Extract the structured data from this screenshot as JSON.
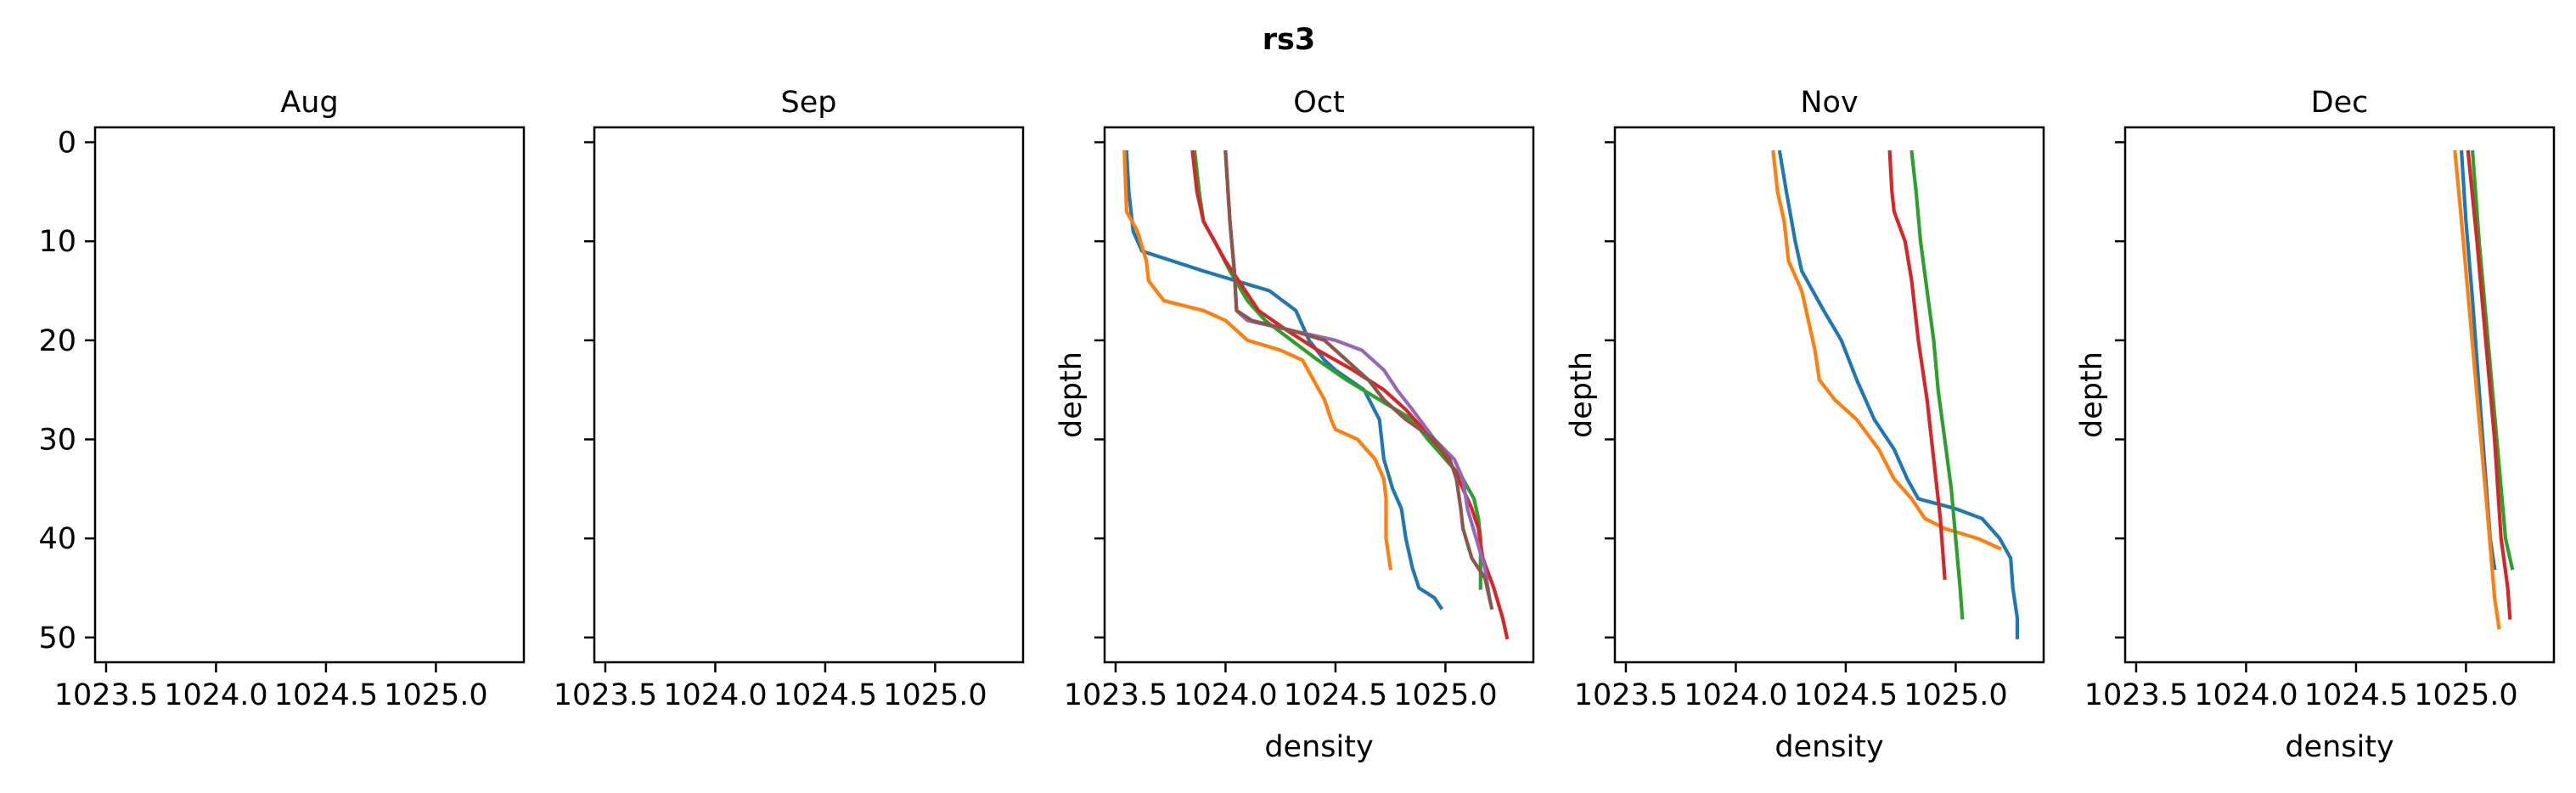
{
  "chart_data": {
    "type": "line",
    "title": "rs3",
    "shared_axes": {
      "xlim": [
        1023.45,
        1025.4
      ],
      "ylim": [
        52.5,
        -1.5
      ],
      "xticks": [
        1023.5,
        1024.0,
        1024.5,
        1025.0
      ],
      "xtick_labels": [
        "1023.5",
        "1024.0",
        "1024.5",
        "1025.0"
      ],
      "yticks": [
        0,
        10,
        20,
        30,
        40,
        50
      ],
      "ytick_labels": [
        "0",
        "10",
        "20",
        "30",
        "40",
        "50"
      ],
      "y_inverted": true,
      "grid": false
    },
    "palette": [
      "#1f77b4",
      "#ff7f0e",
      "#2ca02c",
      "#d62728",
      "#9467bd",
      "#8c564b"
    ],
    "panels": [
      {
        "title": "Aug",
        "xlabel": "",
        "ylabel": "",
        "series": []
      },
      {
        "title": "Sep",
        "xlabel": "",
        "ylabel": "",
        "series": []
      },
      {
        "title": "Oct",
        "xlabel": "density",
        "ylabel": "depth",
        "series": [
          {
            "color": "#1f77b4",
            "points": [
              [
                1023.55,
                1
              ],
              [
                1023.56,
                5
              ],
              [
                1023.58,
                9
              ],
              [
                1023.62,
                11
              ],
              [
                1023.9,
                13
              ],
              [
                1024.2,
                15
              ],
              [
                1024.32,
                17
              ],
              [
                1024.38,
                20
              ],
              [
                1024.45,
                22
              ],
              [
                1024.5,
                23
              ],
              [
                1024.63,
                25
              ],
              [
                1024.7,
                28
              ],
              [
                1024.72,
                32
              ],
              [
                1024.76,
                35
              ],
              [
                1024.8,
                37
              ],
              [
                1024.82,
                40
              ],
              [
                1024.85,
                43
              ],
              [
                1024.88,
                45
              ],
              [
                1024.95,
                46
              ],
              [
                1024.98,
                47
              ]
            ]
          },
          {
            "color": "#ff7f0e",
            "points": [
              [
                1023.54,
                1
              ],
              [
                1023.55,
                7
              ],
              [
                1023.6,
                9
              ],
              [
                1023.64,
                12
              ],
              [
                1023.65,
                14
              ],
              [
                1023.72,
                16
              ],
              [
                1023.9,
                17
              ],
              [
                1024.0,
                18
              ],
              [
                1024.1,
                20
              ],
              [
                1024.25,
                21
              ],
              [
                1024.35,
                22
              ],
              [
                1024.4,
                24
              ],
              [
                1024.45,
                26
              ],
              [
                1024.48,
                28
              ],
              [
                1024.5,
                29
              ],
              [
                1024.6,
                30
              ],
              [
                1024.68,
                32
              ],
              [
                1024.72,
                34
              ],
              [
                1024.73,
                36
              ],
              [
                1024.73,
                40
              ],
              [
                1024.75,
                43
              ]
            ]
          },
          {
            "color": "#2ca02c",
            "points": [
              [
                1023.86,
                1
              ],
              [
                1023.88,
                5
              ],
              [
                1023.9,
                8
              ],
              [
                1023.95,
                10
              ],
              [
                1024.02,
                13
              ],
              [
                1024.1,
                16
              ],
              [
                1024.18,
                18
              ],
              [
                1024.3,
                20
              ],
              [
                1024.42,
                22
              ],
              [
                1024.55,
                24
              ],
              [
                1024.7,
                26
              ],
              [
                1024.85,
                28
              ],
              [
                1024.92,
                30
              ],
              [
                1025.0,
                32
              ],
              [
                1025.08,
                34
              ],
              [
                1025.13,
                36
              ],
              [
                1025.15,
                38
              ],
              [
                1025.16,
                40
              ],
              [
                1025.16,
                45
              ]
            ]
          },
          {
            "color": "#d62728",
            "points": [
              [
                1023.85,
                1
              ],
              [
                1023.87,
                5
              ],
              [
                1023.9,
                8
              ],
              [
                1023.95,
                10
              ],
              [
                1024.0,
                12
              ],
              [
                1024.06,
                14
              ],
              [
                1024.15,
                17
              ],
              [
                1024.28,
                19
              ],
              [
                1024.42,
                21
              ],
              [
                1024.58,
                23
              ],
              [
                1024.72,
                25
              ],
              [
                1024.82,
                27
              ],
              [
                1024.9,
                29
              ],
              [
                1024.98,
                31
              ],
              [
                1025.04,
                33
              ],
              [
                1025.08,
                35
              ],
              [
                1025.12,
                37
              ],
              [
                1025.15,
                39
              ],
              [
                1025.17,
                42
              ],
              [
                1025.22,
                45
              ],
              [
                1025.26,
                48
              ],
              [
                1025.28,
                50
              ]
            ]
          },
          {
            "color": "#9467bd",
            "points": [
              [
                1024.0,
                1
              ],
              [
                1024.02,
                8
              ],
              [
                1024.04,
                13
              ],
              [
                1024.05,
                17
              ],
              [
                1024.1,
                18
              ],
              [
                1024.3,
                19
              ],
              [
                1024.5,
                20
              ],
              [
                1024.62,
                21
              ],
              [
                1024.72,
                23
              ],
              [
                1024.78,
                25
              ],
              [
                1024.85,
                27
              ],
              [
                1024.95,
                30
              ],
              [
                1025.04,
                32
              ],
              [
                1025.08,
                34
              ],
              [
                1025.1,
                37
              ],
              [
                1025.14,
                40
              ],
              [
                1025.18,
                43
              ],
              [
                1025.2,
                46
              ]
            ]
          },
          {
            "color": "#8c564b",
            "points": [
              [
                1024.0,
                1
              ],
              [
                1024.02,
                8
              ],
              [
                1024.04,
                13
              ],
              [
                1024.05,
                17
              ],
              [
                1024.12,
                18
              ],
              [
                1024.3,
                19
              ],
              [
                1024.45,
                20
              ],
              [
                1024.55,
                22
              ],
              [
                1024.65,
                24
              ],
              [
                1024.72,
                26
              ],
              [
                1024.82,
                28
              ],
              [
                1024.95,
                30
              ],
              [
                1025.02,
                32
              ],
              [
                1025.05,
                34
              ],
              [
                1025.07,
                37
              ],
              [
                1025.08,
                39
              ],
              [
                1025.12,
                42
              ],
              [
                1025.18,
                44
              ],
              [
                1025.21,
                47
              ]
            ]
          }
        ]
      },
      {
        "title": "Nov",
        "xlabel": "density",
        "ylabel": "depth",
        "series": [
          {
            "color": "#1f77b4",
            "points": [
              [
                1024.2,
                1
              ],
              [
                1024.23,
                5
              ],
              [
                1024.27,
                10
              ],
              [
                1024.3,
                13
              ],
              [
                1024.4,
                17
              ],
              [
                1024.48,
                20
              ],
              [
                1024.55,
                24
              ],
              [
                1024.63,
                28
              ],
              [
                1024.72,
                31
              ],
              [
                1024.78,
                34
              ],
              [
                1024.83,
                36
              ],
              [
                1025.0,
                37
              ],
              [
                1025.12,
                38
              ],
              [
                1025.2,
                40
              ],
              [
                1025.25,
                42
              ],
              [
                1025.26,
                45
              ],
              [
                1025.28,
                48
              ],
              [
                1025.28,
                50
              ]
            ]
          },
          {
            "color": "#ff7f0e",
            "points": [
              [
                1024.17,
                1
              ],
              [
                1024.19,
                5
              ],
              [
                1024.22,
                8
              ],
              [
                1024.24,
                12
              ],
              [
                1024.3,
                15
              ],
              [
                1024.33,
                18
              ],
              [
                1024.36,
                21
              ],
              [
                1024.38,
                24
              ],
              [
                1024.45,
                26
              ],
              [
                1024.55,
                28
              ],
              [
                1024.65,
                31
              ],
              [
                1024.72,
                34
              ],
              [
                1024.8,
                36
              ],
              [
                1024.86,
                38
              ],
              [
                1024.95,
                39
              ],
              [
                1025.1,
                40
              ],
              [
                1025.2,
                41
              ]
            ]
          },
          {
            "color": "#2ca02c",
            "points": [
              [
                1024.8,
                1
              ],
              [
                1024.82,
                5
              ],
              [
                1024.84,
                10
              ],
              [
                1024.87,
                15
              ],
              [
                1024.9,
                20
              ],
              [
                1024.92,
                25
              ],
              [
                1024.95,
                30
              ],
              [
                1024.98,
                35
              ],
              [
                1025.0,
                40
              ],
              [
                1025.02,
                45
              ],
              [
                1025.03,
                48
              ]
            ]
          },
          {
            "color": "#d62728",
            "points": [
              [
                1024.7,
                1
              ],
              [
                1024.71,
                5
              ],
              [
                1024.72,
                7
              ],
              [
                1024.77,
                10
              ],
              [
                1024.8,
                14
              ],
              [
                1024.83,
                20
              ],
              [
                1024.87,
                26
              ],
              [
                1024.9,
                32
              ],
              [
                1024.93,
                38
              ],
              [
                1024.95,
                44
              ]
            ]
          }
        ]
      },
      {
        "title": "Dec",
        "xlabel": "density",
        "ylabel": "depth",
        "series": [
          {
            "color": "#1f77b4",
            "points": [
              [
                1024.98,
                1
              ],
              [
                1025.0,
                8
              ],
              [
                1025.03,
                16
              ],
              [
                1025.06,
                25
              ],
              [
                1025.09,
                34
              ],
              [
                1025.11,
                40
              ],
              [
                1025.13,
                43
              ]
            ]
          },
          {
            "color": "#ff7f0e",
            "points": [
              [
                1024.95,
                1
              ],
              [
                1024.98,
                8
              ],
              [
                1025.02,
                18
              ],
              [
                1025.06,
                28
              ],
              [
                1025.1,
                38
              ],
              [
                1025.13,
                46
              ],
              [
                1025.15,
                49
              ]
            ]
          },
          {
            "color": "#2ca02c",
            "points": [
              [
                1025.03,
                1
              ],
              [
                1025.06,
                10
              ],
              [
                1025.1,
                20
              ],
              [
                1025.14,
                30
              ],
              [
                1025.18,
                40
              ],
              [
                1025.21,
                43
              ]
            ]
          },
          {
            "color": "#d62728",
            "points": [
              [
                1025.01,
                1
              ],
              [
                1025.05,
                10
              ],
              [
                1025.09,
                20
              ],
              [
                1025.13,
                30
              ],
              [
                1025.16,
                40
              ],
              [
                1025.19,
                45
              ],
              [
                1025.2,
                48
              ]
            ]
          }
        ]
      }
    ]
  }
}
